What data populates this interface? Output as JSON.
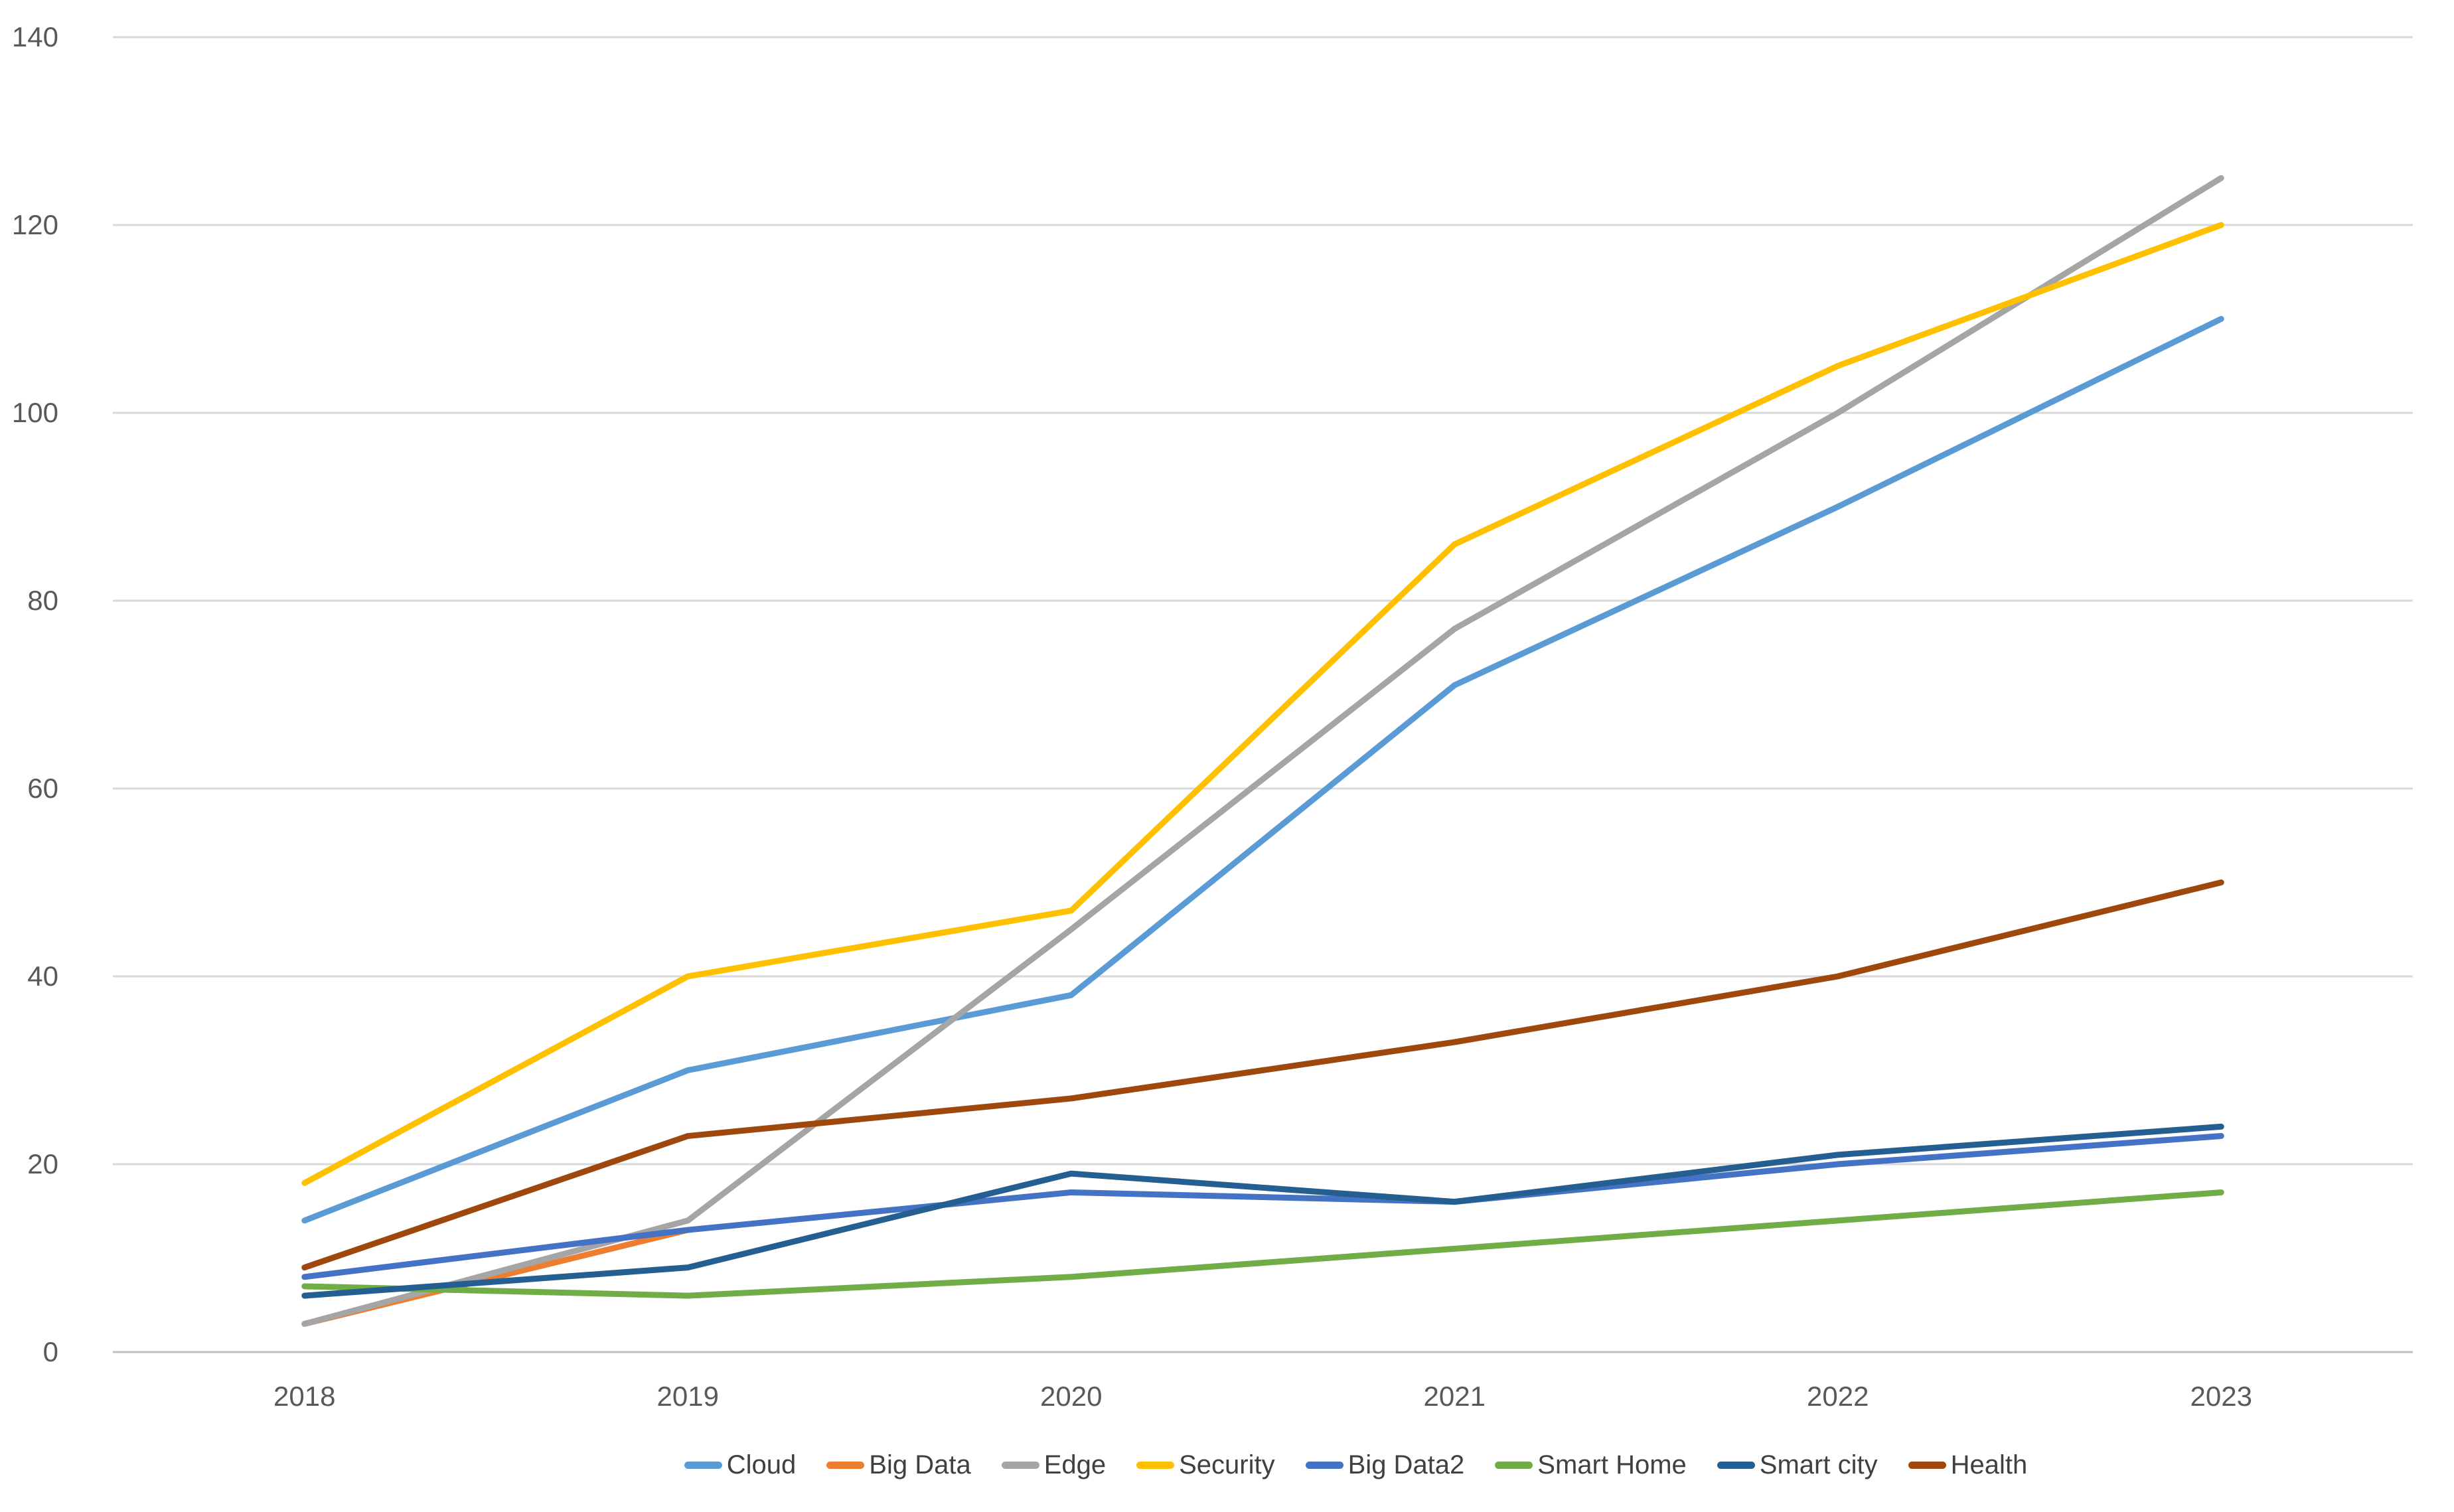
{
  "chart_data": {
    "type": "line",
    "title": "",
    "categories": [
      "2018",
      "2019",
      "2020",
      "2021",
      "2022",
      "2023"
    ],
    "series": [
      {
        "name": "Cloud",
        "color": "#5B9BD5",
        "values": [
          14,
          30,
          38,
          71,
          90,
          110
        ]
      },
      {
        "name": "Big Data",
        "color": "#ED7D31",
        "values": [
          3,
          13,
          null,
          null,
          null,
          null
        ]
      },
      {
        "name": "Edge",
        "color": "#A5A5A5",
        "values": [
          3,
          14,
          45,
          77,
          100,
          125
        ]
      },
      {
        "name": "Security",
        "color": "#FFC000",
        "values": [
          18,
          40,
          47,
          86,
          105,
          120
        ]
      },
      {
        "name": "Big Data2",
        "color": "#4472C4",
        "values": [
          8,
          13,
          17,
          16,
          20,
          23
        ]
      },
      {
        "name": "Smart Home",
        "color": "#70AD47",
        "values": [
          7,
          6,
          8,
          11,
          14,
          17
        ]
      },
      {
        "name": "Smart city",
        "color": "#255E91",
        "values": [
          6,
          9,
          19,
          16,
          21,
          24
        ]
      },
      {
        "name": "Health",
        "color": "#9E480E",
        "values": [
          9,
          23,
          27,
          33,
          40,
          50
        ]
      }
    ],
    "y_axis": {
      "min": 0,
      "max": 140,
      "step": 20,
      "tick_labels": [
        "0",
        "20",
        "40",
        "60",
        "80",
        "100",
        "120",
        "140"
      ]
    },
    "x_axis": {
      "tick_labels": [
        "2018",
        "2019",
        "2020",
        "2021",
        "2022",
        "2023"
      ]
    },
    "grid": true,
    "legend_position": "bottom",
    "legend_items": [
      "Cloud",
      "Big Data",
      "Edge",
      "Security",
      "Big Data2",
      "Smart Home",
      "Smart city",
      "Health"
    ],
    "colors": {
      "gridline": "#D9D9D9",
      "axis_line": "#BFBFBF",
      "tick_text": "#595959",
      "background": "#FFFFFF"
    }
  }
}
